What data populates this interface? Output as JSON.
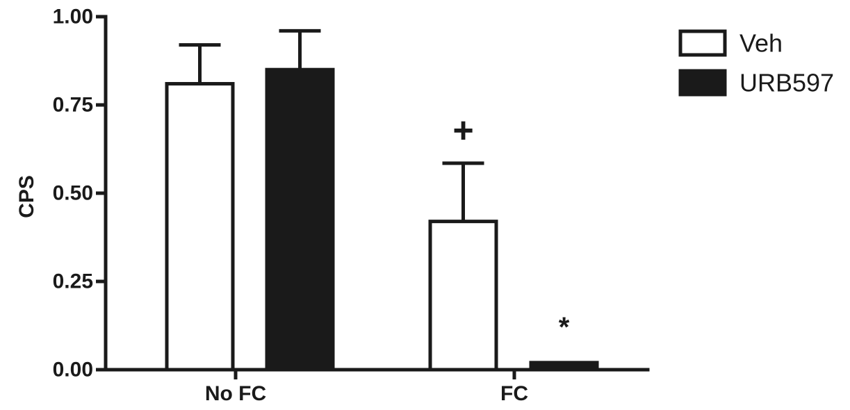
{
  "chart_data": {
    "type": "bar",
    "title": "",
    "xlabel": "",
    "ylabel": "CPS",
    "ylim": [
      0,
      1.0
    ],
    "yticks": [
      0.0,
      0.25,
      0.5,
      0.75,
      1.0
    ],
    "ytick_labels": [
      "0.00",
      "0.25",
      "0.50",
      "0.75",
      "1.00"
    ],
    "categories": [
      "No FC",
      "FC"
    ],
    "series": [
      {
        "name": "Veh",
        "fill": "#ffffff",
        "stroke": "#1a1a1a",
        "values": [
          0.81,
          0.42
        ],
        "errors": [
          0.11,
          0.165
        ]
      },
      {
        "name": "URB597",
        "fill": "#1a1a1a",
        "stroke": "#1a1a1a",
        "values": [
          0.85,
          0.02
        ],
        "errors": [
          0.11,
          0.0
        ]
      }
    ],
    "annotations": [
      {
        "text": "+",
        "category": "FC",
        "series": "Veh"
      },
      {
        "text": "*",
        "category": "FC",
        "series": "URB597"
      }
    ],
    "legend_position": "top-right",
    "grid": false
  }
}
